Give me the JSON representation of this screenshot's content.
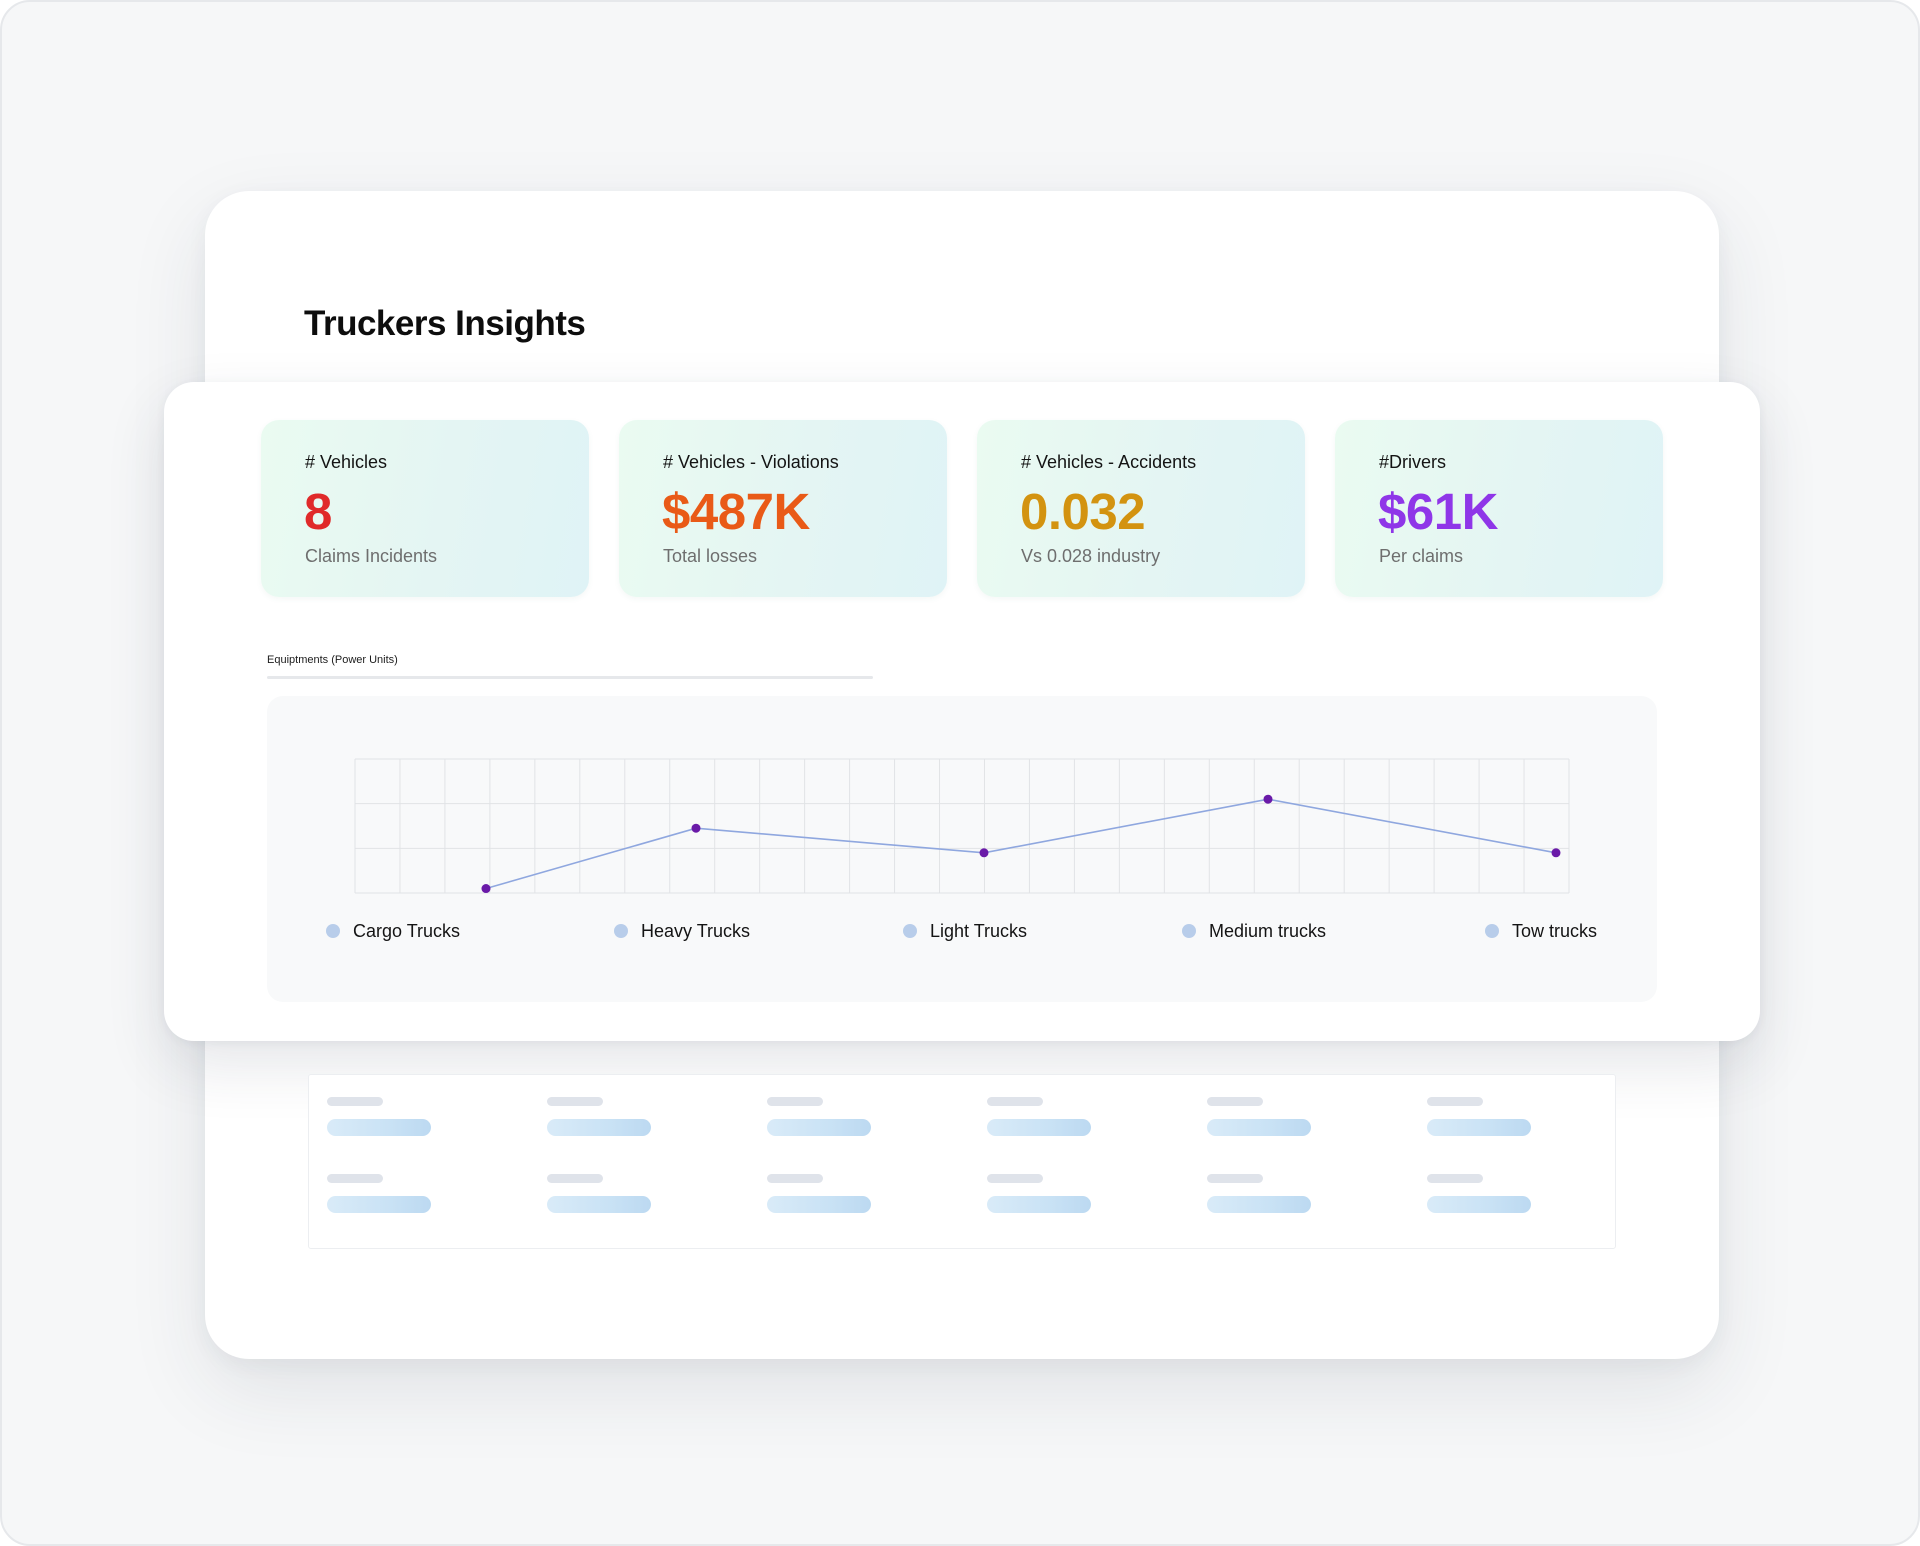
{
  "page": {
    "title": "Truckers Insights"
  },
  "kpis": [
    {
      "label": "# Vehicles",
      "value": "8",
      "sub": "Claims Incidents",
      "color": "#e02a2a"
    },
    {
      "label": "# Vehicles - Violations",
      "value": "$487K",
      "sub": "Total losses",
      "color": "#e95a17"
    },
    {
      "label": "# Vehicles - Accidents",
      "value": "0.032",
      "sub": "Vs 0.028 industry",
      "color": "#d39310"
    },
    {
      "label": "#Drivers",
      "value": "$61K",
      "sub": "Per claims",
      "color": "#8f36e8"
    }
  ],
  "section": {
    "label": "Equiptments (Power Units)"
  },
  "chart_data": {
    "type": "line",
    "categories": [
      "Cargo Trucks",
      "Heavy Trucks",
      "Light Trucks",
      "Medium trucks",
      "Tow trucks"
    ],
    "series": [
      {
        "values": [
          0.1,
          1.45,
          0.9,
          2.1,
          0.9
        ]
      }
    ],
    "ylim": [
      0,
      3
    ],
    "grid": true,
    "legend_position": "bottom",
    "line_color": "#8fa7df",
    "point_color": "#6a1aa8",
    "legend_dot_color": "#b8cdea"
  }
}
